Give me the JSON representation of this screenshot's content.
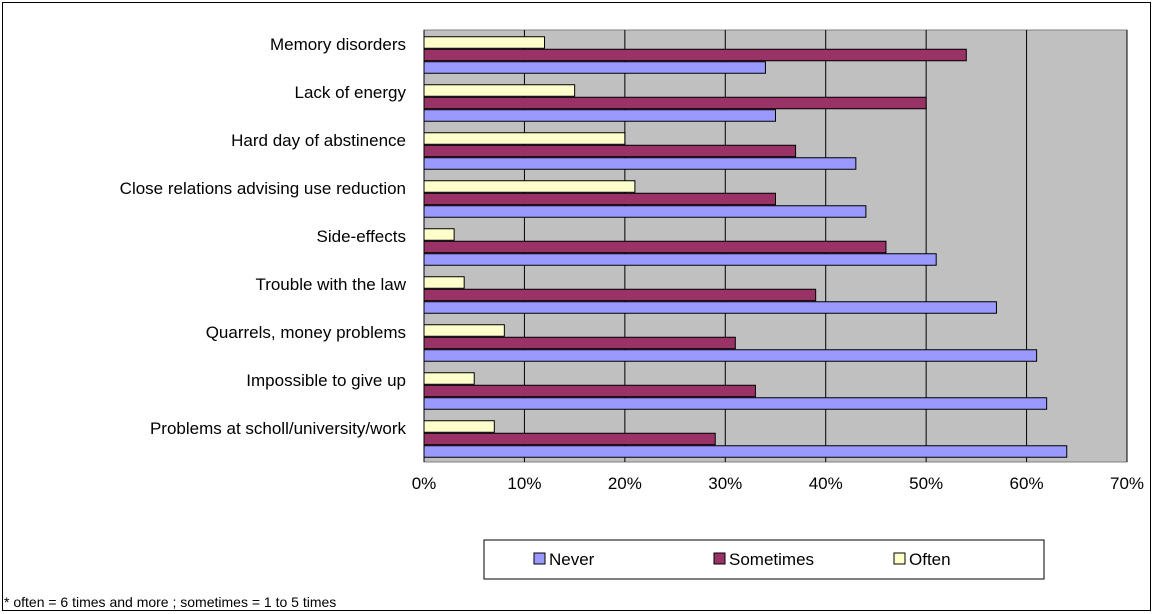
{
  "chart_data": {
    "type": "bar",
    "orientation": "horizontal",
    "categories": [
      "Memory disorders",
      "Lack of energy",
      "Hard day of abstinence",
      "Close relations advising use reduction",
      "Side-effects",
      "Trouble with the law",
      "Quarrels, money problems",
      "Impossible to give up",
      "Problems at scholl/university/work"
    ],
    "series": [
      {
        "name": "Never",
        "values": [
          34,
          35,
          43,
          44,
          51,
          57,
          61,
          62,
          64
        ]
      },
      {
        "name": "Sometimes",
        "values": [
          54,
          50,
          37,
          35,
          46,
          39,
          31,
          33,
          29
        ]
      },
      {
        "name": "Often",
        "values": [
          12,
          15,
          20,
          21,
          3,
          4,
          8,
          5,
          7
        ]
      }
    ],
    "xlim": [
      0,
      70
    ],
    "x_ticks": [
      "0%",
      "10%",
      "20%",
      "30%",
      "40%",
      "50%",
      "60%",
      "70%"
    ],
    "grid": true,
    "legend_position": "bottom"
  },
  "colors": {
    "Never": "#9999ff",
    "Sometimes": "#993366",
    "Often": "#ffffcc",
    "plot_background": "#c0c0c0"
  },
  "footnote": "* often = 6 times and more ; sometimes = 1 to 5 times"
}
